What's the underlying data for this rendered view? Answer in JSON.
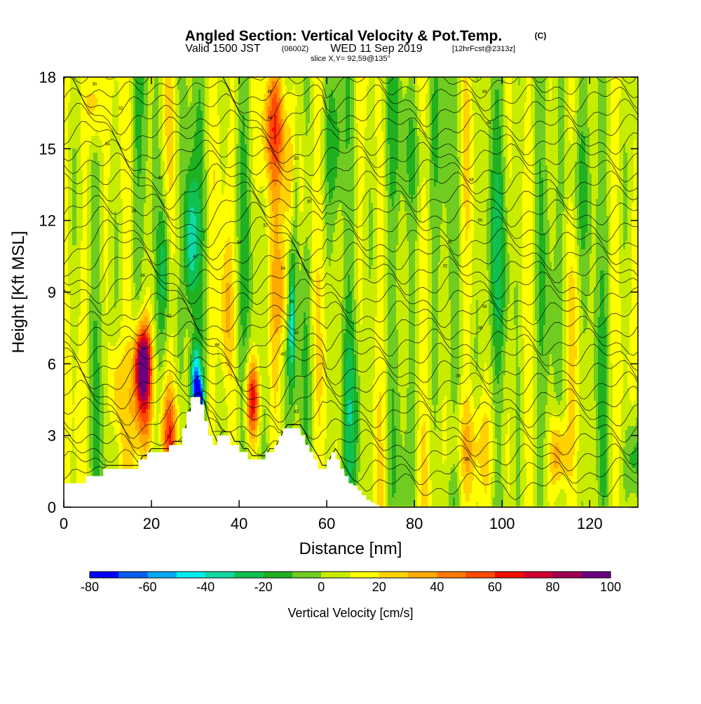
{
  "title": {
    "main": "Angled Section: Vertical Velocity & Pot.Temp.",
    "main_suffix": "(C)",
    "valid_prefix": "Valid 1500 JST",
    "valid_zulu": "(0600Z)",
    "valid_date": "WED 11 Sep 2019",
    "forecast": "[12hrFcst@2313z]",
    "slice": "slice X,Y= 92,59@135°"
  },
  "chart_data": {
    "type": "heatmap",
    "xlabel": "Distance [nm]",
    "ylabel": "Height [Kft MSL]",
    "xlim": [
      0,
      131
    ],
    "ylim": [
      0,
      18
    ],
    "x_ticks": [
      "0",
      "20",
      "40",
      "60",
      "80",
      "100",
      "120"
    ],
    "y_ticks": [
      "0",
      "3",
      "6",
      "9",
      "12",
      "15",
      "18"
    ],
    "colorbar": {
      "label": "Vertical Velocity [cm/s]",
      "levels": [
        -80,
        -70,
        -60,
        -50,
        -40,
        -30,
        -20,
        -10,
        0,
        10,
        20,
        30,
        40,
        50,
        60,
        70,
        80,
        90,
        100
      ],
      "tick_labels": [
        "-80",
        "-60",
        "-40",
        "-20",
        "0",
        "20",
        "40",
        "60",
        "80",
        "100"
      ],
      "colors": [
        "#0000ff",
        "#0a5ef0",
        "#04a8f4",
        "#00ecec",
        "#10d8a0",
        "#10c050",
        "#20b020",
        "#70cc20",
        "#c8ec00",
        "#ffff00",
        "#ffd200",
        "#ffaa00",
        "#ff7a00",
        "#ff4a00",
        "#f01000",
        "#d00030",
        "#a00050",
        "#6a0080"
      ]
    },
    "terrain_profile": {
      "x": [
        0,
        1,
        2,
        5,
        6,
        9,
        10,
        11,
        13,
        15,
        17,
        19,
        21,
        23,
        24,
        27,
        28,
        29,
        30,
        31,
        32,
        33,
        34,
        35,
        36,
        38,
        40,
        42,
        44,
        46,
        48,
        49,
        50,
        51,
        53,
        54,
        55,
        56,
        57,
        58,
        59,
        60,
        61,
        62,
        63,
        64,
        65,
        66,
        67,
        68,
        69,
        70,
        71,
        72,
        80,
        90,
        100,
        110,
        120,
        131
      ],
      "height": [
        1.0,
        1.0,
        1.0,
        1.3,
        1.3,
        1.6,
        1.6,
        1.6,
        1.6,
        1.6,
        2.0,
        2.3,
        2.3,
        2.3,
        2.6,
        3.3,
        4.0,
        4.6,
        4.6,
        4.3,
        3.6,
        3.0,
        2.6,
        3.0,
        3.0,
        2.6,
        2.3,
        2.0,
        2.0,
        2.3,
        2.6,
        3.0,
        3.3,
        3.3,
        3.3,
        3.0,
        2.6,
        2.3,
        2.0,
        1.6,
        1.6,
        2.0,
        2.3,
        2.0,
        1.6,
        1.3,
        1.0,
        0.9,
        0.7,
        0.5,
        0.3,
        0.2,
        0.1,
        0.0,
        0.0,
        0.0,
        0.0,
        0.0,
        0.0,
        0.0
      ]
    },
    "isentrope_labels": [
      "30",
      "32",
      "34",
      "36",
      "38",
      "40",
      "42",
      "44",
      "46",
      "48",
      "50"
    ]
  }
}
